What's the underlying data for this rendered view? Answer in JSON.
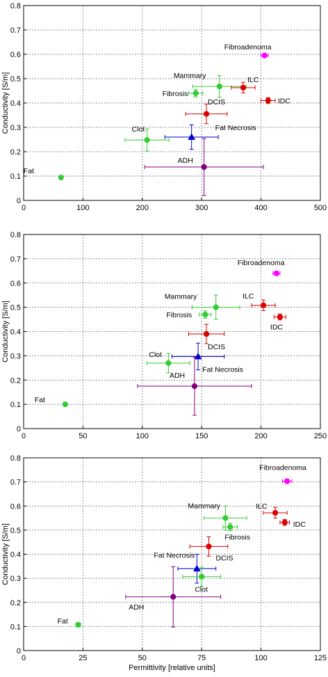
{
  "chart_data": [
    {
      "type": "scatter",
      "title": "",
      "xlabel": "",
      "ylabel": "Conductivity [S/m]",
      "xlim": [
        0,
        500
      ],
      "ylim": [
        0,
        0.8
      ],
      "xticks": [
        0,
        100,
        200,
        300,
        400,
        500
      ],
      "yticks": [
        0,
        0.1,
        0.2,
        0.3,
        0.4,
        0.5,
        0.6,
        0.7,
        0.8
      ],
      "grid": true,
      "points": [
        {
          "label": "Fibroadenoma",
          "x": 406,
          "y": 0.595,
          "xerr": 6,
          "yerr": 0.006,
          "color": "#ff00ff",
          "marker": "circle"
        },
        {
          "label": "Mammary",
          "x": 330,
          "y": 0.468,
          "xerr": 45,
          "yerr": 0.045,
          "color": "#33cc33",
          "marker": "circle"
        },
        {
          "label": "ILC",
          "x": 370,
          "y": 0.463,
          "xerr": 20,
          "yerr": 0.022,
          "color": "#dd0000",
          "marker": "circle"
        },
        {
          "label": "Fibrosis",
          "x": 290,
          "y": 0.44,
          "xerr": 12,
          "yerr": 0.015,
          "color": "#33cc33",
          "marker": "circle"
        },
        {
          "label": "IDC",
          "x": 412,
          "y": 0.41,
          "xerr": 12,
          "yerr": 0.012,
          "color": "#dd0000",
          "marker": "circle"
        },
        {
          "label": "DCIS",
          "x": 308,
          "y": 0.355,
          "xerr": 35,
          "yerr": 0.04,
          "color": "#dd0000",
          "marker": "circle"
        },
        {
          "label": "Fat Necrosis",
          "x": 283,
          "y": 0.26,
          "xerr": 45,
          "yerr": 0.05,
          "color": "#0000cc",
          "marker": "triangle"
        },
        {
          "label": "Clot",
          "x": 208,
          "y": 0.248,
          "xerr": 37,
          "yerr": 0.045,
          "color": "#33cc33",
          "marker": "circle"
        },
        {
          "label": "ADH",
          "x": 304,
          "y": 0.137,
          "xerr": 100,
          "yerr": 0.117,
          "color": "#800080",
          "marker": "circle"
        },
        {
          "label": "Fat",
          "x": 63,
          "y": 0.094,
          "xerr": 3,
          "yerr": 0.006,
          "color": "#33cc33",
          "marker": "circle"
        }
      ]
    },
    {
      "type": "scatter",
      "title": "",
      "xlabel": "",
      "ylabel": "Conductivity [S/m]",
      "xlim": [
        0,
        250
      ],
      "ylim": [
        0,
        0.8
      ],
      "xticks": [
        0,
        50,
        100,
        150,
        200,
        250
      ],
      "yticks": [
        0,
        0.1,
        0.2,
        0.3,
        0.4,
        0.5,
        0.6,
        0.7,
        0.8
      ],
      "grid": true,
      "points": [
        {
          "label": "Fibroadenoma",
          "x": 213,
          "y": 0.64,
          "xerr": 3,
          "yerr": 0.008,
          "color": "#ff00ff",
          "marker": "circle"
        },
        {
          "label": "Mammary",
          "x": 162,
          "y": 0.5,
          "xerr": 20,
          "yerr": 0.05,
          "color": "#33cc33",
          "marker": "circle"
        },
        {
          "label": "ILC",
          "x": 202,
          "y": 0.508,
          "xerr": 10,
          "yerr": 0.022,
          "color": "#dd0000",
          "marker": "circle"
        },
        {
          "label": "Fibrosis",
          "x": 153,
          "y": 0.47,
          "xerr": 5,
          "yerr": 0.015,
          "color": "#33cc33",
          "marker": "circle"
        },
        {
          "label": "IDC",
          "x": 216,
          "y": 0.46,
          "xerr": 5,
          "yerr": 0.012,
          "color": "#dd0000",
          "marker": "circle"
        },
        {
          "label": "DCIS",
          "x": 154,
          "y": 0.39,
          "xerr": 15,
          "yerr": 0.04,
          "color": "#dd0000",
          "marker": "circle"
        },
        {
          "label": "Fat Necrosis",
          "x": 147,
          "y": 0.297,
          "xerr": 22,
          "yerr": 0.055,
          "color": "#0000cc",
          "marker": "triangle"
        },
        {
          "label": "Clot",
          "x": 122,
          "y": 0.27,
          "xerr": 18,
          "yerr": 0.04,
          "color": "#33cc33",
          "marker": "circle"
        },
        {
          "label": "ADH",
          "x": 144,
          "y": 0.175,
          "xerr": 48,
          "yerr": 0.12,
          "color": "#800080",
          "marker": "circle"
        },
        {
          "label": "Fat",
          "x": 35,
          "y": 0.1,
          "xerr": 1.5,
          "yerr": 0.005,
          "color": "#33cc33",
          "marker": "circle"
        }
      ]
    },
    {
      "type": "scatter",
      "title": "",
      "xlabel": "Permittivity [relative units]",
      "ylabel": "Conductivity [S/m]",
      "xlim": [
        0,
        125
      ],
      "ylim": [
        0,
        0.8
      ],
      "xticks": [
        0,
        25,
        50,
        75,
        100,
        125
      ],
      "yticks": [
        0,
        0.1,
        0.2,
        0.3,
        0.4,
        0.5,
        0.6,
        0.7,
        0.8
      ],
      "grid": true,
      "points": [
        {
          "label": "Fibroadenoma",
          "x": 111,
          "y": 0.703,
          "xerr": 2,
          "yerr": 0.008,
          "color": "#ff00ff",
          "marker": "circle"
        },
        {
          "label": "Mammary",
          "x": 85,
          "y": 0.55,
          "xerr": 9,
          "yerr": 0.05,
          "color": "#33cc33",
          "marker": "circle"
        },
        {
          "label": "ILC",
          "x": 106,
          "y": 0.572,
          "xerr": 5,
          "yerr": 0.022,
          "color": "#dd0000",
          "marker": "circle"
        },
        {
          "label": "Fibrosis",
          "x": 87,
          "y": 0.513,
          "xerr": 3,
          "yerr": 0.015,
          "color": "#33cc33",
          "marker": "circle"
        },
        {
          "label": "IDC",
          "x": 110,
          "y": 0.532,
          "xerr": 2,
          "yerr": 0.012,
          "color": "#dd0000",
          "marker": "circle"
        },
        {
          "label": "DCIS",
          "x": 78,
          "y": 0.432,
          "xerr": 8,
          "yerr": 0.04,
          "color": "#dd0000",
          "marker": "circle"
        },
        {
          "label": "Fat Necrosis",
          "x": 73,
          "y": 0.34,
          "xerr": 8,
          "yerr": 0.06,
          "color": "#0000cc",
          "marker": "triangle"
        },
        {
          "label": "Clot",
          "x": 75,
          "y": 0.307,
          "xerr": 8,
          "yerr": 0.04,
          "color": "#33cc33",
          "marker": "circle"
        },
        {
          "label": "ADH",
          "x": 63,
          "y": 0.223,
          "xerr": 20,
          "yerr": 0.125,
          "color": "#800080",
          "marker": "circle"
        },
        {
          "label": "Fat",
          "x": 23,
          "y": 0.107,
          "xerr": 1,
          "yerr": 0.005,
          "color": "#33cc33",
          "marker": "circle"
        }
      ]
    }
  ]
}
